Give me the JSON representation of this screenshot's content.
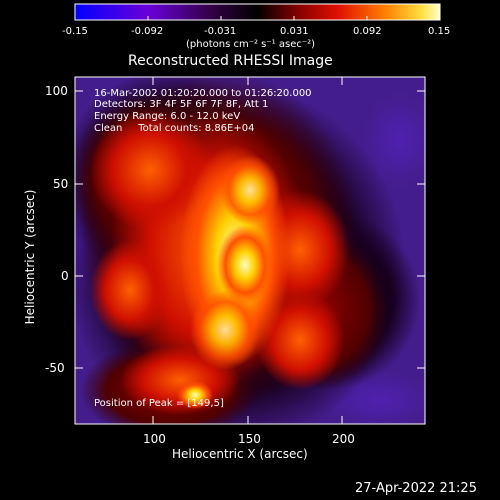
{
  "colorbar": {
    "ticks": [
      "-0.15",
      "-0.092",
      "-0.031",
      "0.031",
      "0.092",
      "0.15"
    ],
    "units": "(photons cm⁻² s⁻¹ asec⁻²)"
  },
  "title": "Reconstructed RHESSI Image",
  "annotation": {
    "time": "16-Mar-2002 01:20:20.000 to 01:26:20.000",
    "detectors": "Detectors: 3F 4F 5F 6F 7F 8F, Att 1",
    "energy": "Energy Range: 6.0 - 12.0 keV",
    "clean": "Clean     Total counts: 8.86E+04",
    "peak": "Position of Peak = [149,5]"
  },
  "axes": {
    "xlabel": "Heliocentric X (arcsec)",
    "ylabel": "Heliocentric Y (arcsec)",
    "xticks": [
      "100",
      "150",
      "200"
    ],
    "yticks": [
      "100",
      "50",
      "0",
      "-50"
    ]
  },
  "footer": {
    "timestamp": "27-Apr-2022 21:25"
  }
}
